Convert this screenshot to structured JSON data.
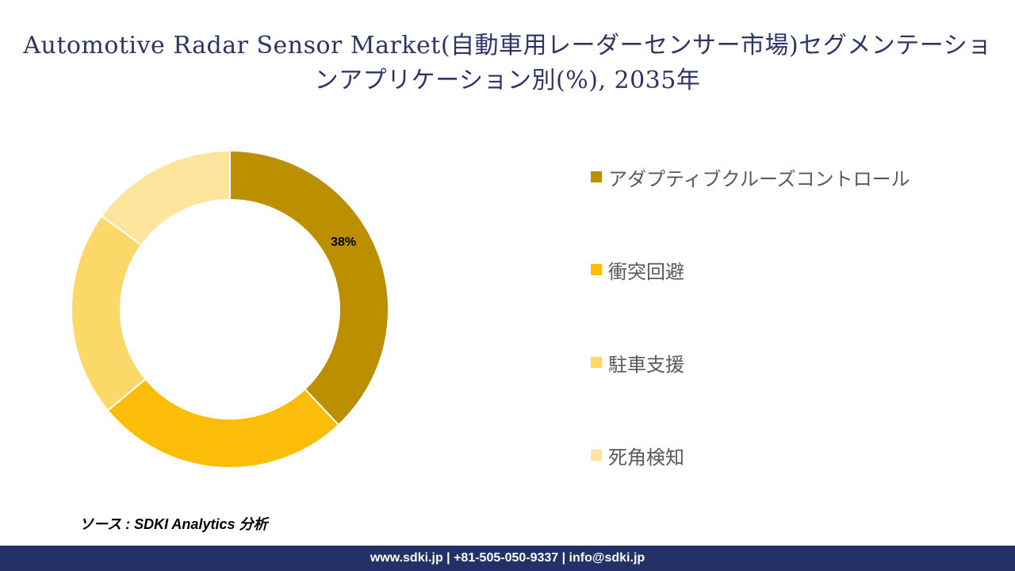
{
  "chart_data": {
    "type": "pie",
    "title": "Automotive Radar Sensor Market(自動車用レーダーセンサー市場)セグメンテーションアプリケーション別(%), 2035年",
    "categories": [
      "アダプティブクルーズコントロール",
      "衝突回避",
      "駐車支援",
      "死角検知"
    ],
    "values": [
      38,
      26,
      21,
      15
    ],
    "colors": [
      "#bb8f00",
      "#fbbd08",
      "#fcd868",
      "#fde59e"
    ],
    "data_labels": [
      "38%",
      "",
      "",
      ""
    ],
    "legend_position": "right",
    "donut": true
  },
  "source_text": "ソース : SDKI Analytics 分析",
  "footer_text": "www.sdki.jp | +81-505-050-9337 | info@sdki.jp"
}
